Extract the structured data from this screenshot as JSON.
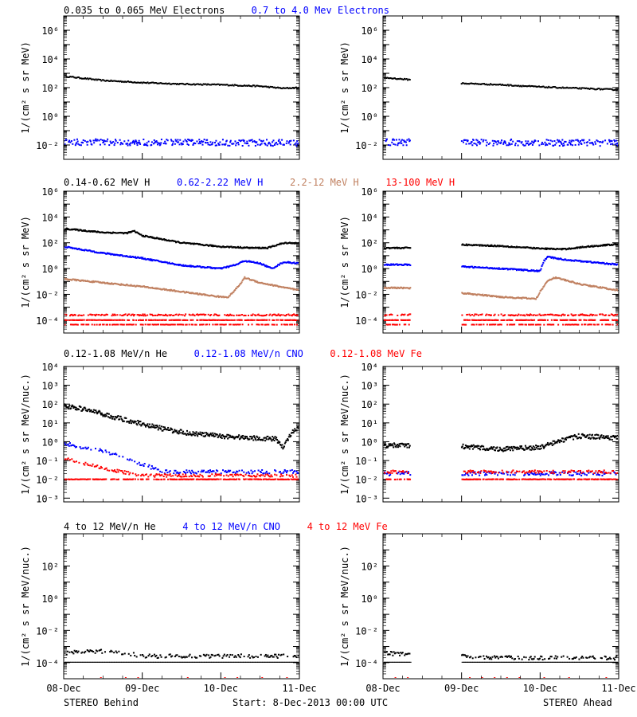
{
  "chart_data": {
    "type": "scatter",
    "x_ticks": [
      "08-Dec",
      "09-Dec",
      "10-Dec",
      "11-Dec"
    ],
    "x_range": [
      "2013-12-08T00:00",
      "2013-12-11T00:00"
    ],
    "footer": {
      "left": "STEREO Behind",
      "center": "Start:  8-Dec-2013 00:00 UTC",
      "right": "STEREO Ahead"
    },
    "gap": {
      "ahead": [
        "2013-12-08T09:00",
        "2013-12-09T00:00"
      ]
    },
    "colors": {
      "black": "#000000",
      "blue": "#0000ff",
      "tan": "#c08060",
      "red": "#ff0000"
    },
    "panels": [
      {
        "id": "electrons",
        "titles": [
          {
            "text": "0.035 to 0.065 MeV Electrons",
            "color": "black"
          },
          {
            "text": "0.7 to 4.0 Mev Electrons",
            "color": "blue"
          }
        ],
        "ylabel": "1/(cm² s sr MeV)",
        "log": true,
        "ylim_exp": [
          -3,
          7
        ],
        "yticks": [
          {
            "e": 6,
            "text": "10⁶"
          },
          {
            "e": 4,
            "text": "10⁴"
          },
          {
            "e": 2,
            "text": "10²"
          },
          {
            "e": 0,
            "text": "10⁰"
          },
          {
            "e": -2,
            "text": "10⁻²"
          }
        ],
        "series": [
          {
            "color": "black",
            "behind": [
              [
                0,
                2.8
              ],
              [
                0.5,
                2.5
              ],
              [
                1,
                2.35
              ],
              [
                1.5,
                2.25
              ],
              [
                2,
                2.2
              ],
              [
                2.5,
                2.1
              ],
              [
                2.8,
                1.95
              ],
              [
                3,
                2.0
              ]
            ],
            "ahead": [
              [
                0,
                2.7
              ],
              [
                0.35,
                2.55
              ],
              [
                1,
                2.3
              ],
              [
                1.5,
                2.2
              ],
              [
                2,
                2.05
              ],
              [
                2.5,
                1.95
              ],
              [
                3,
                1.85
              ]
            ],
            "jitter": 0.04,
            "n": 220
          },
          {
            "color": "blue",
            "behind": [
              [
                0,
                -1.8
              ],
              [
                3,
                -1.85
              ]
            ],
            "ahead": [
              [
                0,
                -1.8
              ],
              [
                3,
                -1.85
              ]
            ],
            "jitter": 0.22,
            "n": 420,
            "sparse": true
          }
        ]
      },
      {
        "id": "protons",
        "titles": [
          {
            "text": "0.14-0.62 MeV H",
            "color": "black"
          },
          {
            "text": "0.62-2.22 MeV H",
            "color": "blue"
          },
          {
            "text": "2.2-12 MeV H",
            "color": "tan"
          },
          {
            "text": "13-100 MeV H",
            "color": "red"
          }
        ],
        "ylabel": "1/(cm² s sr MeV)",
        "log": true,
        "ylim_exp": [
          -5,
          6
        ],
        "yticks": [
          {
            "e": 6,
            "text": "10⁶"
          },
          {
            "e": 4,
            "text": "10⁴"
          },
          {
            "e": 2,
            "text": "10²"
          },
          {
            "e": 0,
            "text": "10⁰"
          },
          {
            "e": -2,
            "text": "10⁻²"
          },
          {
            "e": -4,
            "text": "10⁻⁴"
          }
        ],
        "series": [
          {
            "color": "black",
            "behind": [
              [
                0,
                3.1
              ],
              [
                0.5,
                2.8
              ],
              [
                0.8,
                2.75
              ],
              [
                0.9,
                2.9
              ],
              [
                1,
                2.55
              ],
              [
                1.5,
                2.0
              ],
              [
                2,
                1.7
              ],
              [
                2.4,
                1.6
              ],
              [
                2.6,
                1.6
              ],
              [
                2.75,
                1.9
              ],
              [
                2.85,
                2.0
              ],
              [
                3,
                1.95
              ]
            ],
            "ahead": [
              [
                0,
                1.6
              ],
              [
                0.3,
                1.6
              ],
              [
                1,
                1.85
              ],
              [
                1.5,
                1.75
              ],
              [
                2,
                1.55
              ],
              [
                2.3,
                1.5
              ],
              [
                2.6,
                1.7
              ],
              [
                3,
                1.9
              ]
            ],
            "jitter": 0.05,
            "n": 320
          },
          {
            "color": "blue",
            "behind": [
              [
                0,
                1.7
              ],
              [
                0.5,
                1.2
              ],
              [
                1,
                0.8
              ],
              [
                1.5,
                0.25
              ],
              [
                2,
                0.0
              ],
              [
                2.2,
                0.3
              ],
              [
                2.3,
                0.6
              ],
              [
                2.5,
                0.4
              ],
              [
                2.65,
                0.0
              ],
              [
                2.8,
                0.5
              ],
              [
                3,
                0.4
              ]
            ],
            "ahead": [
              [
                0,
                0.3
              ],
              [
                0.3,
                0.3
              ],
              [
                1,
                0.15
              ],
              [
                1.5,
                0.0
              ],
              [
                2,
                -0.2
              ],
              [
                2.05,
                0.6
              ],
              [
                2.1,
                0.9
              ],
              [
                2.3,
                0.7
              ],
              [
                3,
                0.3
              ]
            ],
            "jitter": 0.05,
            "n": 320
          },
          {
            "color": "tan",
            "behind": [
              [
                0,
                -0.8
              ],
              [
                0.5,
                -1.1
              ],
              [
                1,
                -1.4
              ],
              [
                1.5,
                -1.8
              ],
              [
                2,
                -2.2
              ],
              [
                2.1,
                -2.2
              ],
              [
                2.25,
                -1.2
              ],
              [
                2.3,
                -0.7
              ],
              [
                2.5,
                -1.1
              ],
              [
                3,
                -1.7
              ]
            ],
            "ahead": [
              [
                0,
                -1.5
              ],
              [
                0.3,
                -1.5
              ],
              [
                1,
                -1.9
              ],
              [
                1.5,
                -2.2
              ],
              [
                1.95,
                -2.35
              ],
              [
                2,
                -1.8
              ],
              [
                2.1,
                -0.9
              ],
              [
                2.2,
                -0.7
              ],
              [
                2.5,
                -1.2
              ],
              [
                3,
                -1.7
              ]
            ],
            "jitter": 0.05,
            "n": 320
          },
          {
            "color": "red",
            "behind": [
              [
                0,
                -3.6
              ],
              [
                3,
                -3.6
              ]
            ],
            "ahead": [
              [
                0,
                -3.6
              ],
              [
                3,
                -3.6
              ]
            ],
            "jitter": 0.06,
            "n": 260,
            "sparse": true
          },
          {
            "color": "red",
            "behind": [
              [
                0,
                -4.0
              ],
              [
                3,
                -4.0
              ]
            ],
            "ahead": [
              [
                0,
                -4.0
              ],
              [
                3,
                -4.0
              ]
            ],
            "jitter": 0.01,
            "n": 300,
            "sparse": true
          },
          {
            "color": "red",
            "behind": [
              [
                0,
                -4.35
              ],
              [
                3,
                -4.35
              ]
            ],
            "ahead": [
              [
                0,
                -4.35
              ],
              [
                3,
                -4.35
              ]
            ],
            "jitter": 0.01,
            "n": 200,
            "sparse": true
          }
        ]
      },
      {
        "id": "heavy-low",
        "titles": [
          {
            "text": "0.12-1.08 MeV/n He",
            "color": "black"
          },
          {
            "text": "0.12-1.08 MeV/n CNO",
            "color": "blue"
          },
          {
            "text": "0.12-1.08 MeV Fe",
            "color": "red"
          }
        ],
        "ylabel": "1/(cm² s sr MeV/nuc.)",
        "log": true,
        "ylim_exp": [
          -3.2,
          4
        ],
        "yticks": [
          {
            "e": 4,
            "text": "10⁴"
          },
          {
            "e": 3,
            "text": "10³"
          },
          {
            "e": 2,
            "text": "10²"
          },
          {
            "e": 1,
            "text": "10¹"
          },
          {
            "e": 0,
            "text": "10⁰"
          },
          {
            "e": -1,
            "text": "10⁻¹"
          },
          {
            "e": -2,
            "text": "10⁻²"
          },
          {
            "e": -3,
            "text": "10⁻³"
          }
        ],
        "series": [
          {
            "color": "black",
            "behind": [
              [
                0,
                1.9
              ],
              [
                0.3,
                1.7
              ],
              [
                0.6,
                1.35
              ],
              [
                1,
                0.95
              ],
              [
                1.3,
                0.65
              ],
              [
                1.6,
                0.45
              ],
              [
                2,
                0.3
              ],
              [
                2.4,
                0.2
              ],
              [
                2.7,
                0.15
              ],
              [
                2.8,
                -0.3
              ],
              [
                2.9,
                0.5
              ],
              [
                3,
                0.7
              ]
            ],
            "ahead": [
              [
                0,
                -0.2
              ],
              [
                0.3,
                -0.2
              ],
              [
                1,
                -0.25
              ],
              [
                1.5,
                -0.4
              ],
              [
                2,
                -0.3
              ],
              [
                2.3,
                0.1
              ],
              [
                2.5,
                0.3
              ],
              [
                3,
                0.2
              ]
            ],
            "jitter": 0.12,
            "n": 360
          },
          {
            "color": "blue",
            "behind": [
              [
                0,
                -0.1
              ],
              [
                0.5,
                -0.5
              ],
              [
                0.8,
                -0.9
              ],
              [
                1,
                -1.2
              ],
              [
                1.3,
                -1.6
              ],
              [
                3,
                -1.6
              ]
            ],
            "ahead": [
              [
                0,
                -1.7
              ],
              [
                3,
                -1.7
              ]
            ],
            "jitter": 0.1,
            "n": 260,
            "sparse": true
          },
          {
            "color": "red",
            "behind": [
              [
                0,
                -0.9
              ],
              [
                0.3,
                -1.2
              ],
              [
                0.6,
                -1.5
              ],
              [
                1,
                -1.8
              ],
              [
                3,
                -1.8
              ]
            ],
            "ahead": [
              [
                0,
                -1.6
              ],
              [
                3,
                -1.6
              ]
            ],
            "jitter": 0.08,
            "n": 260,
            "sparse": true
          },
          {
            "color": "red",
            "behind": [
              [
                0,
                -2.0
              ],
              [
                3,
                -2.0
              ]
            ],
            "ahead": [
              [
                0,
                -2.0
              ],
              [
                3,
                -2.0
              ]
            ],
            "jitter": 0.01,
            "n": 340,
            "sparse": true
          }
        ]
      },
      {
        "id": "heavy-high",
        "titles": [
          {
            "text": "4 to 12 MeV/n He",
            "color": "black"
          },
          {
            "text": "4 to 12 MeV/n CNO",
            "color": "blue"
          },
          {
            "text": "4 to 12 MeV Fe",
            "color": "red"
          }
        ],
        "ylabel": "1/(cm² s sr MeV/nuc.)",
        "log": true,
        "ylim_exp": [
          -5,
          4
        ],
        "yticks": [
          {
            "e": 2,
            "text": "10²"
          },
          {
            "e": 0,
            "text": "10⁰"
          },
          {
            "e": -2,
            "text": "10⁻²"
          },
          {
            "e": -4,
            "text": "10⁻⁴"
          }
        ],
        "series": [
          {
            "color": "black",
            "behind": [
              [
                0,
                -3.4
              ],
              [
                0.5,
                -3.3
              ],
              [
                0.8,
                -3.4
              ],
              [
                1,
                -3.6
              ],
              [
                3,
                -3.6
              ]
            ],
            "ahead": [
              [
                0,
                -3.4
              ],
              [
                0.3,
                -3.5
              ],
              [
                1,
                -3.6
              ],
              [
                1.5,
                -3.7
              ],
              [
                3,
                -3.7
              ]
            ],
            "jitter": 0.12,
            "n": 240,
            "sparse": true
          },
          {
            "color": "black",
            "behind": [
              [
                0,
                -4.0
              ],
              [
                3,
                -4.0
              ]
            ],
            "ahead": [
              [
                0,
                -4.0
              ],
              [
                3,
                -4.0
              ]
            ],
            "jitter": 0.0,
            "n": 200,
            "line": true
          },
          {
            "color": "red",
            "behind": [
              [
                0,
                -4.95
              ],
              [
                3,
                -4.95
              ]
            ],
            "ahead": [
              [
                0,
                -4.95
              ],
              [
                3,
                -4.95
              ]
            ],
            "jitter": 0.0,
            "n": 20,
            "sparse": true
          }
        ]
      }
    ]
  }
}
